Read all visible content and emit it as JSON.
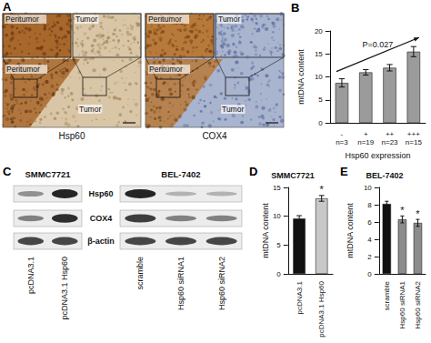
{
  "chart_data": [
    {
      "panel": "B",
      "type": "bar",
      "categories": [
        "-\nn=3",
        "+\nn=19",
        "++\nn=23",
        "+++\nn=15"
      ],
      "values": [
        8.7,
        11.0,
        12.0,
        15.5
      ],
      "errors": [
        0.9,
        0.6,
        0.7,
        1.1
      ],
      "color": "#9b9b9b",
      "x_label": "Hsp60 expression",
      "y_label": "mtDNA content",
      "ylim": [
        0,
        20
      ],
      "yticks": [
        0,
        5,
        10,
        15,
        20
      ],
      "grid": false,
      "annotations": [
        {
          "text": "P=0.027"
        }
      ]
    },
    {
      "panel": "D",
      "type": "bar",
      "title": "SMMC7721",
      "categories": [
        "pcDNA3.1",
        "pcDNA3.1 Hsp60"
      ],
      "values": [
        9.6,
        13.1
      ],
      "errors": [
        0.5,
        0.5
      ],
      "colors": [
        "#111111",
        "#c8c8c8"
      ],
      "y_label": "mtDNA content",
      "ylim": [
        0,
        15
      ],
      "yticks": [
        0,
        5,
        10,
        15
      ],
      "grid": false,
      "annotations": [
        {
          "category": "pcDNA3.1 Hsp60",
          "text": "*"
        }
      ]
    },
    {
      "panel": "E",
      "type": "bar",
      "title": "BEL-7402",
      "categories": [
        "scramble",
        "Hsp60 siRNA1",
        "Hsp60 siRNA2"
      ],
      "values": [
        8.1,
        6.3,
        5.9
      ],
      "errors": [
        0.3,
        0.4,
        0.4
      ],
      "colors": [
        "#111111",
        "#8c8c8c",
        "#8c8c8c"
      ],
      "y_label": "mtDNA content",
      "ylim": [
        0,
        10
      ],
      "yticks": [
        0,
        2,
        4,
        6,
        8,
        10
      ],
      "grid": false,
      "annotations": [
        {
          "category": "Hsp60 siRNA1",
          "text": "*"
        },
        {
          "category": "Hsp60 siRNA2",
          "text": "*"
        }
      ]
    }
  ],
  "panel_a": {
    "panel": "A",
    "images": [
      {
        "stain": "Hsp60",
        "texts": [
          "Peritumor",
          "Tumor",
          "Peritumor",
          "Tumor"
        ]
      },
      {
        "stain": "COX4",
        "texts": [
          "Peritumor",
          "Tumor",
          "Peritumor",
          "Tumor"
        ]
      }
    ]
  },
  "panel_c": {
    "panel": "C",
    "groups": [
      {
        "cell_line": "SMMC7721",
        "lanes": [
          "pcDNA3.1",
          "pcDNA3.1 Hsp60"
        ]
      },
      {
        "cell_line": "BEL-7402",
        "lanes": [
          "scramble",
          "Hsp60 siRNA1",
          "Hsp60 siRNA2"
        ]
      }
    ],
    "rows": [
      "Hsp60",
      "COX4",
      "β-actin"
    ]
  }
}
